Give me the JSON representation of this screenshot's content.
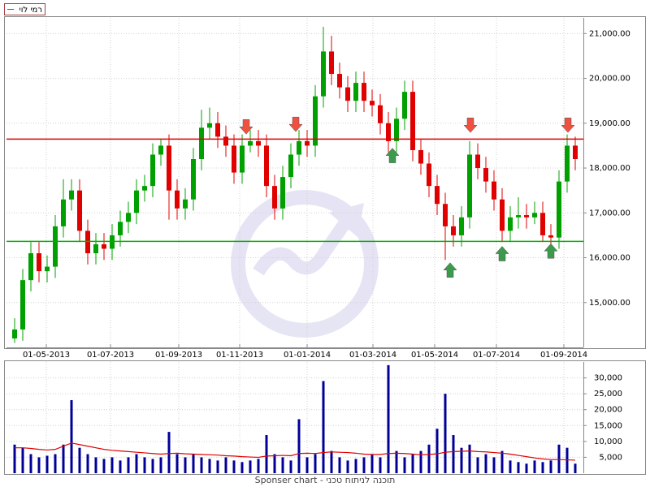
{
  "chart_data": [
    {
      "type": "candlestick",
      "name": "רמי לוי",
      "up_color": "#00a000",
      "down_color": "#e00000",
      "grid": true,
      "xlim": [
        0,
        71
      ],
      "ylim": [
        14000,
        21350
      ],
      "xticks": [
        {
          "value": 4.9,
          "label": "01-05-2013"
        },
        {
          "value": 12.8,
          "label": "01-07-2013"
        },
        {
          "value": 21.2,
          "label": "01-09-2013"
        },
        {
          "value": 28.7,
          "label": "01-11-2013"
        },
        {
          "value": 37.0,
          "label": "01-01-2014"
        },
        {
          "value": 45.1,
          "label": "01-03-2014"
        },
        {
          "value": 52.7,
          "label": "01-05-2014"
        },
        {
          "value": 60.3,
          "label": "01-07-2014"
        },
        {
          "value": 68.6,
          "label": "01-09-2014"
        }
      ],
      "yticks": [
        {
          "value": 15000,
          "label": "15,000.00"
        },
        {
          "value": 16000,
          "label": "16,000.00"
        },
        {
          "value": 17000,
          "label": "17,000.00"
        },
        {
          "value": 18000,
          "label": "18,000.00"
        },
        {
          "value": 19000,
          "label": "19,000.00"
        },
        {
          "value": 20000,
          "label": "20,000.00"
        },
        {
          "value": 21000,
          "label": "21,000.00"
        }
      ],
      "x": [
        1,
        2,
        3,
        4,
        5,
        6,
        7,
        8,
        9,
        10,
        11,
        12,
        13,
        14,
        15,
        16,
        17,
        18,
        19,
        20,
        21,
        22,
        23,
        24,
        25,
        26,
        27,
        28,
        29,
        30,
        31,
        32,
        33,
        34,
        35,
        36,
        37,
        38,
        39,
        40,
        41,
        42,
        43,
        44,
        45,
        46,
        47,
        48,
        49,
        50,
        51,
        52,
        53,
        54,
        55,
        56,
        57,
        58,
        59,
        60,
        61,
        62,
        63,
        64,
        65,
        66,
        67,
        68,
        69,
        70
      ],
      "open": [
        14200,
        14400,
        15500,
        16100,
        15700,
        15800,
        16700,
        17300,
        17500,
        16600,
        16100,
        16300,
        16200,
        16500,
        16800,
        17000,
        17500,
        17600,
        18300,
        18500,
        17500,
        17100,
        17300,
        18200,
        18900,
        19000,
        18700,
        18500,
        17900,
        18500,
        18600,
        18500,
        17600,
        17100,
        17800,
        18300,
        18600,
        18500,
        19600,
        20600,
        20100,
        19800,
        19500,
        19900,
        19500,
        19400,
        19000,
        18600,
        19100,
        19700,
        18400,
        18100,
        17600,
        17200,
        16700,
        16500,
        16900,
        18300,
        18000,
        17700,
        17300,
        16600,
        16900,
        16950,
        16900,
        17000,
        16500,
        16450,
        17700,
        18500
      ],
      "high": [
        14650,
        15750,
        16350,
        16350,
        16050,
        16950,
        17750,
        17750,
        17750,
        16850,
        16550,
        16550,
        16750,
        17050,
        17250,
        17750,
        17850,
        18550,
        18650,
        18750,
        17750,
        17550,
        18450,
        19300,
        19350,
        19250,
        18950,
        18750,
        18750,
        18850,
        18850,
        18750,
        17850,
        18050,
        18550,
        18850,
        18850,
        19850,
        21150,
        20950,
        20350,
        20050,
        20150,
        20150,
        19750,
        19650,
        19250,
        19350,
        19950,
        19950,
        18650,
        18350,
        17850,
        17450,
        16950,
        17150,
        18600,
        18550,
        18250,
        17950,
        17550,
        17150,
        17350,
        17200,
        17250,
        17250,
        16750,
        17950,
        18750,
        18700
      ],
      "low": [
        14100,
        14150,
        15250,
        15450,
        15450,
        15550,
        16450,
        17050,
        16350,
        15850,
        15850,
        15950,
        15950,
        16250,
        16550,
        16750,
        17250,
        17350,
        18050,
        16850,
        16850,
        16850,
        17050,
        17950,
        18650,
        18450,
        18250,
        17650,
        17650,
        18350,
        18250,
        17350,
        16850,
        16850,
        17550,
        18050,
        18250,
        18250,
        19350,
        19850,
        19550,
        19250,
        19250,
        19250,
        19150,
        18750,
        18350,
        18350,
        18850,
        18150,
        17850,
        17350,
        16950,
        15950,
        16250,
        16250,
        16650,
        17750,
        17450,
        17050,
        16350,
        16350,
        16650,
        16650,
        16750,
        16350,
        16300,
        16200,
        17450,
        17950
      ],
      "close": [
        14400,
        15500,
        16100,
        15700,
        15800,
        16700,
        17300,
        17500,
        16600,
        16100,
        16300,
        16200,
        16500,
        16800,
        17000,
        17500,
        17600,
        18300,
        18500,
        17500,
        17100,
        17300,
        18200,
        18900,
        19000,
        18700,
        18500,
        17900,
        18500,
        18600,
        18500,
        17600,
        17100,
        17800,
        18300,
        18600,
        18500,
        19600,
        20600,
        20100,
        19800,
        19500,
        19900,
        19500,
        19400,
        19000,
        18600,
        19100,
        19700,
        18400,
        18100,
        17600,
        17200,
        16700,
        16500,
        16900,
        18300,
        18000,
        17700,
        17300,
        16600,
        16900,
        16950,
        16900,
        17000,
        16500,
        16450,
        17700,
        18500,
        18200
      ],
      "hlines": [
        {
          "y": 18646,
          "color": "#e00000"
        },
        {
          "y": 16365,
          "color": "#00b000"
        }
      ],
      "arrows": [
        {
          "x": 29.5,
          "y": 18920,
          "direction": "down",
          "color": "#f05040"
        },
        {
          "x": 35.6,
          "y": 18975,
          "direction": "down",
          "color": "#f05040"
        },
        {
          "x": 57.1,
          "y": 18956,
          "direction": "down",
          "color": "#f05040"
        },
        {
          "x": 69.1,
          "y": 18956,
          "direction": "down",
          "color": "#f05040"
        },
        {
          "x": 47.5,
          "y": 18280,
          "direction": "up",
          "color": "#3c9a4c"
        },
        {
          "x": 54.6,
          "y": 15725,
          "direction": "up",
          "color": "#3c9a4c"
        },
        {
          "x": 61.0,
          "y": 16090,
          "direction": "up",
          "color": "#3c9a4c"
        },
        {
          "x": 67.0,
          "y": 16150,
          "direction": "up",
          "color": "#3c9a4c"
        }
      ]
    },
    {
      "type": "bar",
      "color": "#000099",
      "ma_color": "#e00000",
      "grid": true,
      "ylim": [
        0,
        35000
      ],
      "yticks": [
        {
          "value": 5000,
          "label": "5,000"
        },
        {
          "value": 10000,
          "label": "10,000"
        },
        {
          "value": 15000,
          "label": "15,000"
        },
        {
          "value": 20000,
          "label": "20,000"
        },
        {
          "value": 25000,
          "label": "25,000"
        },
        {
          "value": 30000,
          "label": "30,000"
        }
      ],
      "values": [
        9000,
        8000,
        6000,
        5000,
        5500,
        6000,
        9000,
        23000,
        8000,
        6000,
        5000,
        4500,
        5000,
        4000,
        5000,
        6000,
        5000,
        4500,
        5000,
        13000,
        6000,
        5000,
        6000,
        5000,
        4500,
        4000,
        5000,
        4000,
        3500,
        4000,
        4500,
        12000,
        6000,
        5000,
        4000,
        17000,
        5000,
        6000,
        29000,
        7000,
        5000,
        4000,
        4500,
        5000,
        6000,
        5000,
        34000,
        7000,
        5000,
        6000,
        7000,
        9000,
        14000,
        25000,
        12000,
        8000,
        9000,
        5000,
        6000,
        5000,
        7000,
        4000,
        3500,
        3000,
        4000,
        3500,
        4000,
        9000,
        8000,
        3000
      ],
      "ma": [
        8000,
        8000,
        7800,
        7500,
        7300,
        7500,
        8500,
        9500,
        9000,
        8500,
        8000,
        7500,
        7200,
        7000,
        6800,
        6600,
        6400,
        6200,
        6000,
        6200,
        6300,
        6100,
        6000,
        5900,
        5800,
        5700,
        5500,
        5400,
        5200,
        5100,
        5000,
        5400,
        5500,
        5600,
        5500,
        6200,
        6300,
        6200,
        6500,
        6700,
        6600,
        6500,
        6300,
        6000,
        5900,
        5900,
        6200,
        6300,
        6200,
        6000,
        5800,
        5900,
        6100,
        6600,
        6800,
        6900,
        7000,
        6800,
        6700,
        6500,
        6300,
        6000,
        5600,
        5200,
        4800,
        4500,
        4300,
        4300,
        4200,
        4100
      ]
    }
  ],
  "footer": "Sponser chart - תוכנה לניתוח טכני"
}
